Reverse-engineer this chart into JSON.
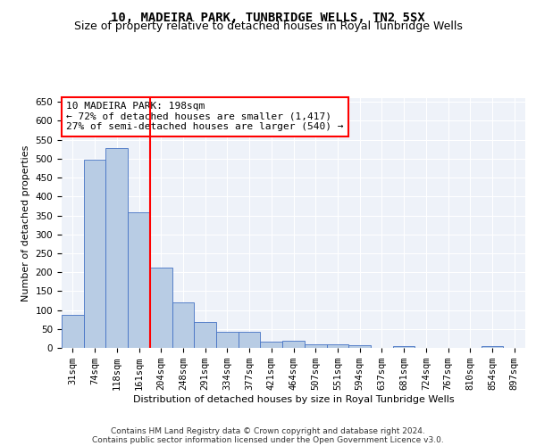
{
  "title": "10, MADEIRA PARK, TUNBRIDGE WELLS, TN2 5SX",
  "subtitle": "Size of property relative to detached houses in Royal Tunbridge Wells",
  "xlabel": "Distribution of detached houses by size in Royal Tunbridge Wells",
  "ylabel": "Number of detached properties",
  "categories": [
    "31sqm",
    "74sqm",
    "118sqm",
    "161sqm",
    "204sqm",
    "248sqm",
    "291sqm",
    "334sqm",
    "377sqm",
    "421sqm",
    "464sqm",
    "507sqm",
    "551sqm",
    "594sqm",
    "637sqm",
    "681sqm",
    "724sqm",
    "767sqm",
    "810sqm",
    "854sqm",
    "897sqm"
  ],
  "values": [
    88,
    498,
    528,
    358,
    212,
    120,
    68,
    42,
    42,
    16,
    18,
    10,
    10,
    6,
    0,
    4,
    0,
    0,
    0,
    4,
    0
  ],
  "bar_color": "#b8cce4",
  "bar_edge_color": "#4472c4",
  "vline_color": "red",
  "annotation_text": "10 MADEIRA PARK: 198sqm\n← 72% of detached houses are smaller (1,417)\n27% of semi-detached houses are larger (540) →",
  "annotation_box_color": "white",
  "annotation_box_edge": "red",
  "footer_line1": "Contains HM Land Registry data © Crown copyright and database right 2024.",
  "footer_line2": "Contains public sector information licensed under the Open Government Licence v3.0.",
  "ylim": [
    0,
    660
  ],
  "yticks": [
    0,
    50,
    100,
    150,
    200,
    250,
    300,
    350,
    400,
    450,
    500,
    550,
    600,
    650
  ],
  "bg_color": "#eef2f9",
  "grid_color": "#ffffff",
  "title_fontsize": 10,
  "subtitle_fontsize": 9,
  "axis_label_fontsize": 8,
  "tick_fontsize": 7.5,
  "annotation_fontsize": 8,
  "footer_fontsize": 6.5
}
